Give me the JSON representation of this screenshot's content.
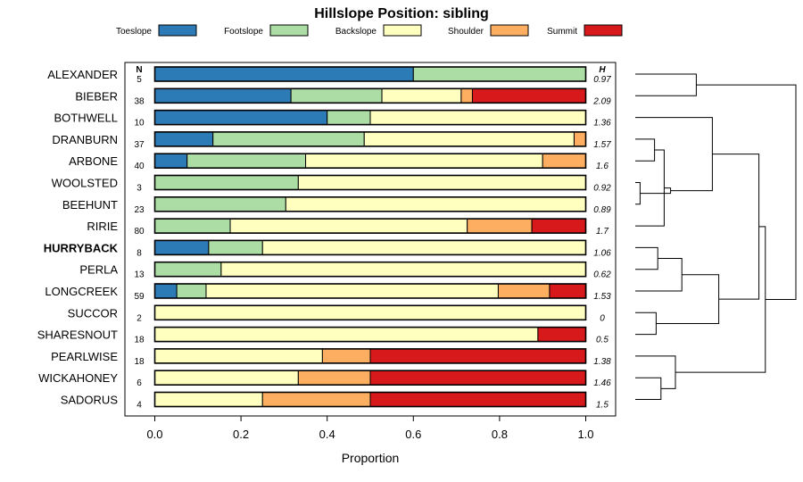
{
  "chart_data": {
    "type": "bar",
    "orientation": "horizontal-stacked",
    "title": "Hillslope Position: sibling",
    "xlabel": "Proportion",
    "xlim": [
      0,
      1
    ],
    "xticks": [
      "0.0",
      "0.2",
      "0.4",
      "0.6",
      "0.8",
      "1.0"
    ],
    "legend": {
      "placement": "top"
    },
    "series": [
      {
        "name": "Toeslope",
        "color": "#2c7bb6"
      },
      {
        "name": "Footslope",
        "color": "#abdda4"
      },
      {
        "name": "Backslope",
        "color": "#ffffbf"
      },
      {
        "name": "Shoulder",
        "color": "#fdae61"
      },
      {
        "name": "Summit",
        "color": "#d7191c"
      }
    ],
    "n_header": "N",
    "h_header": "H",
    "rows": [
      {
        "label": "ALEXANDER",
        "n": "5",
        "h": "0.97",
        "values": [
          0.6,
          0.4,
          0.0,
          0.0,
          0.0
        ]
      },
      {
        "label": "BIEBER",
        "n": "38",
        "h": "2.09",
        "values": [
          0.316,
          0.211,
          0.184,
          0.026,
          0.263
        ]
      },
      {
        "label": "BOTHWELL",
        "n": "10",
        "h": "1.36",
        "values": [
          0.4,
          0.1,
          0.5,
          0.0,
          0.0
        ]
      },
      {
        "label": "DRANBURN",
        "n": "37",
        "h": "1.57",
        "values": [
          0.135,
          0.351,
          0.487,
          0.027,
          0.0
        ]
      },
      {
        "label": "ARBONE",
        "n": "40",
        "h": "1.6",
        "values": [
          0.075,
          0.275,
          0.55,
          0.1,
          0.0
        ]
      },
      {
        "label": "WOOLSTED",
        "n": "3",
        "h": "0.92",
        "values": [
          0.0,
          0.333,
          0.667,
          0.0,
          0.0
        ]
      },
      {
        "label": "BEEHUNT",
        "n": "23",
        "h": "0.89",
        "values": [
          0.0,
          0.304,
          0.696,
          0.0,
          0.0
        ]
      },
      {
        "label": "RIRIE",
        "n": "80",
        "h": "1.7",
        "values": [
          0.0,
          0.175,
          0.55,
          0.15,
          0.125
        ]
      },
      {
        "label": "HURRYBACK",
        "n": "8",
        "h": "1.06",
        "values": [
          0.125,
          0.125,
          0.75,
          0.0,
          0.0
        ],
        "bold": true
      },
      {
        "label": "PERLA",
        "n": "13",
        "h": "0.62",
        "values": [
          0.0,
          0.154,
          0.846,
          0.0,
          0.0
        ]
      },
      {
        "label": "LONGCREEK",
        "n": "59",
        "h": "1.53",
        "values": [
          0.051,
          0.068,
          0.678,
          0.119,
          0.085
        ]
      },
      {
        "label": "SUCCOR",
        "n": "2",
        "h": "0",
        "values": [
          0.0,
          0.0,
          1.0,
          0.0,
          0.0
        ]
      },
      {
        "label": "SHARESNOUT",
        "n": "18",
        "h": "0.5",
        "values": [
          0.0,
          0.0,
          0.889,
          0.0,
          0.111
        ]
      },
      {
        "label": "PEARLWISE",
        "n": "18",
        "h": "1.38",
        "values": [
          0.0,
          0.0,
          0.389,
          0.111,
          0.5
        ]
      },
      {
        "label": "WICKAHONEY",
        "n": "6",
        "h": "1.46",
        "values": [
          0.0,
          0.0,
          0.333,
          0.167,
          0.5
        ]
      },
      {
        "label": "SADORUS",
        "n": "4",
        "h": "1.5",
        "values": [
          0.0,
          0.0,
          0.25,
          0.25,
          0.5
        ]
      }
    ],
    "dendrogram": {
      "leaves": [
        "ALEXANDER",
        "BIEBER",
        "BOTHWELL",
        "DRANBURN",
        "ARBONE",
        "WOOLSTED",
        "BEEHUNT",
        "RIRIE",
        "HURRYBACK",
        "PERLA",
        "LONGCREEK",
        "SUCCOR",
        "SHARESNOUT",
        "PEARLWISE",
        "WICKAHONEY",
        "SADORUS"
      ],
      "merges": [
        [
          "ALEXANDER",
          "BIEBER",
          0.38
        ],
        [
          "DRANBURN",
          "ARBONE",
          0.12
        ],
        [
          "WOOLSTED",
          "BEEHUNT",
          0.03
        ],
        [
          "DRANBURN+ARBONE",
          "RIRIE",
          0.18
        ],
        [
          "DRANBURN+ARBONE+RIRIE",
          "WOOLSTED+BEEHUNT",
          0.22
        ],
        [
          "BOTHWELL",
          "DRANBURN..BEEHUNT",
          0.48
        ],
        [
          "HURRYBACK",
          "PERLA",
          0.14
        ],
        [
          "HURRYBACK+PERLA",
          "LONGCREEK",
          0.29
        ],
        [
          "SUCCOR",
          "SHARESNOUT",
          0.13
        ],
        [
          "HURRYBACK..LONGCREEK",
          "SUCCOR+SHARESNOUT",
          0.52
        ],
        [
          "BOTHWELL..BEEHUNT",
          "HURRYBACK..SHARESNOUT",
          0.77
        ],
        [
          "WICKAHONEY",
          "SADORUS",
          0.16
        ],
        [
          "PEARLWISE",
          "WICKAHONEY+SADORUS",
          0.25
        ],
        [
          "BOTHWELL..SHARESNOUT",
          "PEARLWISE..SADORUS",
          0.81
        ],
        [
          "ALEXANDER+BIEBER",
          "BOTHWELL..SADORUS",
          1.0
        ]
      ]
    }
  }
}
